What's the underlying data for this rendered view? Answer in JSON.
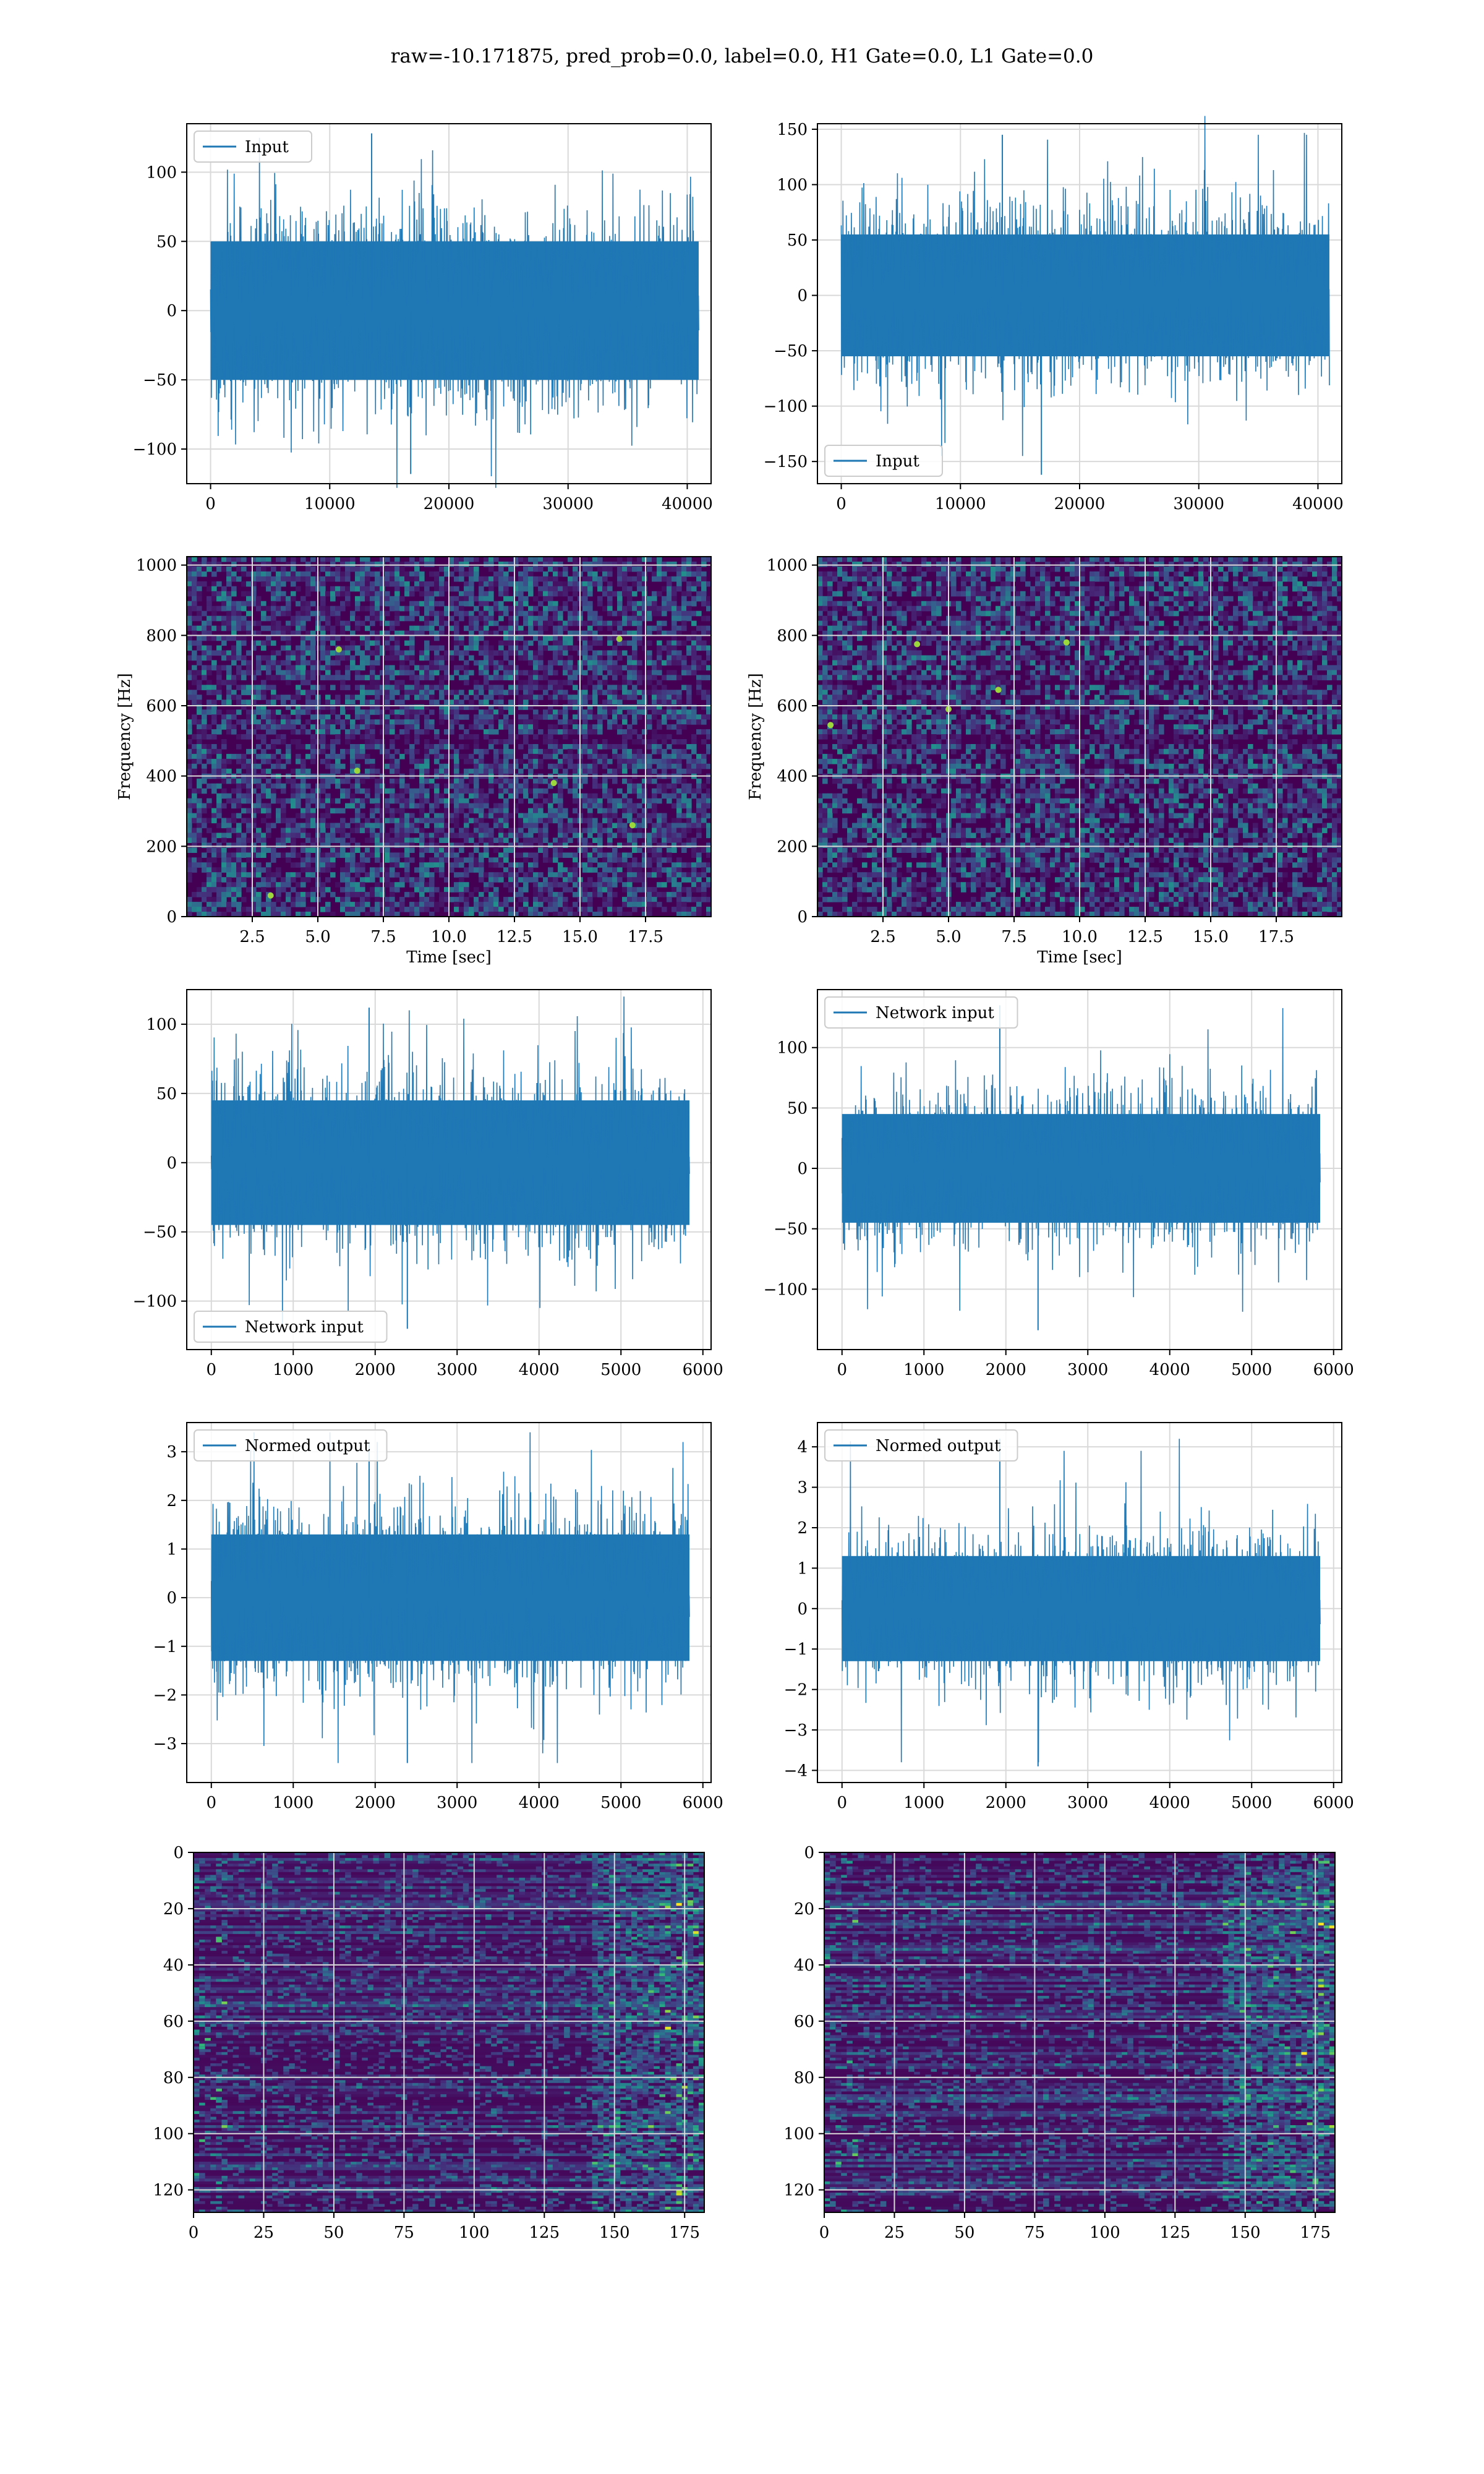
{
  "figure": {
    "suptitle": "raw=-10.171875, pred_prob=0.0, label=0.0, H1 Gate=0.0, L1 Gate=0.0"
  },
  "colors": {
    "series": "#1f77b4",
    "grid": "#d9d9d9",
    "spine": "#000000",
    "colormap": "viridis",
    "image_background": "#440154"
  },
  "chart_data": [
    {
      "id": "h1_input",
      "type": "line",
      "title": "",
      "xlabel": "",
      "ylabel": "",
      "xlim": [
        -2000,
        42000
      ],
      "ylim": [
        -125,
        135
      ],
      "xticks": [
        0,
        10000,
        20000,
        30000,
        40000
      ],
      "yticks": [
        -100,
        -50,
        0,
        50,
        100
      ],
      "grid": true,
      "legend": "upper left",
      "series": [
        {
          "name": "Input",
          "x_range": [
            0,
            40960
          ],
          "n_points": 40960,
          "approx_envelope": [
            -50,
            50
          ],
          "y_min": -118,
          "y_max": 128
        }
      ]
    },
    {
      "id": "l1_input",
      "type": "line",
      "title": "",
      "xlabel": "",
      "ylabel": "",
      "xlim": [
        -2000,
        42000
      ],
      "ylim": [
        -170,
        155
      ],
      "xticks": [
        0,
        10000,
        20000,
        30000,
        40000
      ],
      "yticks": [
        -150,
        -100,
        -50,
        0,
        50,
        100,
        150
      ],
      "grid": true,
      "legend": "lower left",
      "series": [
        {
          "name": "Input",
          "x_range": [
            0,
            40960
          ],
          "n_points": 40960,
          "approx_envelope": [
            -55,
            55
          ],
          "y_min": -162,
          "y_max": 145
        }
      ]
    },
    {
      "id": "h1_spectrogram",
      "type": "heatmap",
      "title": "",
      "xlabel": "Time [sec]",
      "ylabel": "Frequency [Hz]",
      "xlim": [
        0,
        20
      ],
      "ylim": [
        0,
        1024
      ],
      "xticks": [
        2.5,
        5.0,
        7.5,
        10.0,
        12.5,
        15.0,
        17.5
      ],
      "xtick_labels": [
        "2.5",
        "5.0",
        "7.5",
        "10.0",
        "12.5",
        "15.0",
        "17.5"
      ],
      "yticks": [
        0,
        200,
        400,
        600,
        800,
        1000
      ],
      "grid": true,
      "colormap": "viridis",
      "hot_spots": [
        [
          3.2,
          60
        ],
        [
          6.5,
          415
        ],
        [
          14.0,
          380
        ],
        [
          17.0,
          260
        ],
        [
          5.8,
          760
        ],
        [
          16.5,
          790
        ]
      ]
    },
    {
      "id": "l1_spectrogram",
      "type": "heatmap",
      "title": "",
      "xlabel": "Time [sec]",
      "ylabel": "Frequency [Hz]",
      "xlim": [
        0,
        20
      ],
      "ylim": [
        0,
        1024
      ],
      "xticks": [
        2.5,
        5.0,
        7.5,
        10.0,
        12.5,
        15.0,
        17.5
      ],
      "xtick_labels": [
        "2.5",
        "5.0",
        "7.5",
        "10.0",
        "12.5",
        "15.0",
        "17.5"
      ],
      "yticks": [
        0,
        200,
        400,
        600,
        800,
        1000
      ],
      "grid": true,
      "colormap": "viridis",
      "hot_spots": [
        [
          0.5,
          545
        ],
        [
          3.8,
          775
        ],
        [
          5.0,
          590
        ],
        [
          6.9,
          645
        ],
        [
          9.5,
          780
        ]
      ]
    },
    {
      "id": "h1_network_input",
      "type": "line",
      "title": "",
      "xlabel": "",
      "ylabel": "",
      "xlim": [
        -300,
        6100
      ],
      "ylim": [
        -135,
        125
      ],
      "xticks": [
        0,
        1000,
        2000,
        3000,
        4000,
        5000,
        6000
      ],
      "yticks": [
        -100,
        -50,
        0,
        50,
        100
      ],
      "grid": true,
      "legend": "lower left",
      "series": [
        {
          "name": "Network input",
          "x_range": [
            0,
            5836
          ],
          "n_points": 5836,
          "approx_envelope": [
            -45,
            45
          ],
          "y_min": -120,
          "y_max": 112
        }
      ]
    },
    {
      "id": "l1_network_input",
      "type": "line",
      "title": "",
      "xlabel": "",
      "ylabel": "",
      "xlim": [
        -300,
        6100
      ],
      "ylim": [
        -150,
        148
      ],
      "xticks": [
        0,
        1000,
        2000,
        3000,
        4000,
        5000,
        6000
      ],
      "yticks": [
        -100,
        -50,
        0,
        50,
        100
      ],
      "grid": true,
      "legend": "upper left",
      "series": [
        {
          "name": "Network input",
          "x_range": [
            0,
            5836
          ],
          "n_points": 5836,
          "approx_envelope": [
            -45,
            45
          ],
          "y_min": -134,
          "y_max": 135
        }
      ]
    },
    {
      "id": "h1_normed_output",
      "type": "line",
      "title": "",
      "xlabel": "",
      "ylabel": "",
      "xlim": [
        -300,
        6100
      ],
      "ylim": [
        -3.8,
        3.6
      ],
      "xticks": [
        0,
        1000,
        2000,
        3000,
        4000,
        5000,
        6000
      ],
      "yticks": [
        -3,
        -2,
        -1,
        0,
        1,
        2,
        3
      ],
      "grid": true,
      "legend": "upper left",
      "series": [
        {
          "name": "Normed output",
          "x_range": [
            0,
            5836
          ],
          "n_points": 5836,
          "approx_envelope": [
            -1.3,
            1.3
          ],
          "y_min": -3.4,
          "y_max": 3.2
        }
      ]
    },
    {
      "id": "l1_normed_output",
      "type": "line",
      "title": "",
      "xlabel": "",
      "ylabel": "",
      "xlim": [
        -300,
        6100
      ],
      "ylim": [
        -4.3,
        4.6
      ],
      "xticks": [
        0,
        1000,
        2000,
        3000,
        4000,
        5000,
        6000
      ],
      "yticks": [
        -4,
        -3,
        -2,
        -1,
        0,
        1,
        2,
        3,
        4
      ],
      "grid": true,
      "legend": "upper left",
      "series": [
        {
          "name": "Normed output",
          "x_range": [
            0,
            5836
          ],
          "n_points": 5836,
          "approx_envelope": [
            -1.3,
            1.3
          ],
          "y_min": -3.9,
          "y_max": 4.2
        }
      ]
    },
    {
      "id": "h1_feature_map",
      "type": "heatmap",
      "title": "",
      "xlabel": "",
      "ylabel": "",
      "xlim": [
        0,
        182
      ],
      "ylim": [
        128,
        0
      ],
      "xticks": [
        0,
        25,
        50,
        75,
        100,
        125,
        150,
        175
      ],
      "yticks": [
        0,
        20,
        40,
        60,
        80,
        100,
        120
      ],
      "grid": true,
      "colormap": "viridis",
      "rows": 128,
      "cols": 182
    },
    {
      "id": "l1_feature_map",
      "type": "heatmap",
      "title": "",
      "xlabel": "",
      "ylabel": "",
      "xlim": [
        0,
        182
      ],
      "ylim": [
        128,
        0
      ],
      "xticks": [
        0,
        25,
        50,
        75,
        100,
        125,
        150,
        175
      ],
      "yticks": [
        0,
        20,
        40,
        60,
        80,
        100,
        120
      ],
      "grid": true,
      "colormap": "viridis",
      "rows": 128,
      "cols": 182
    }
  ]
}
